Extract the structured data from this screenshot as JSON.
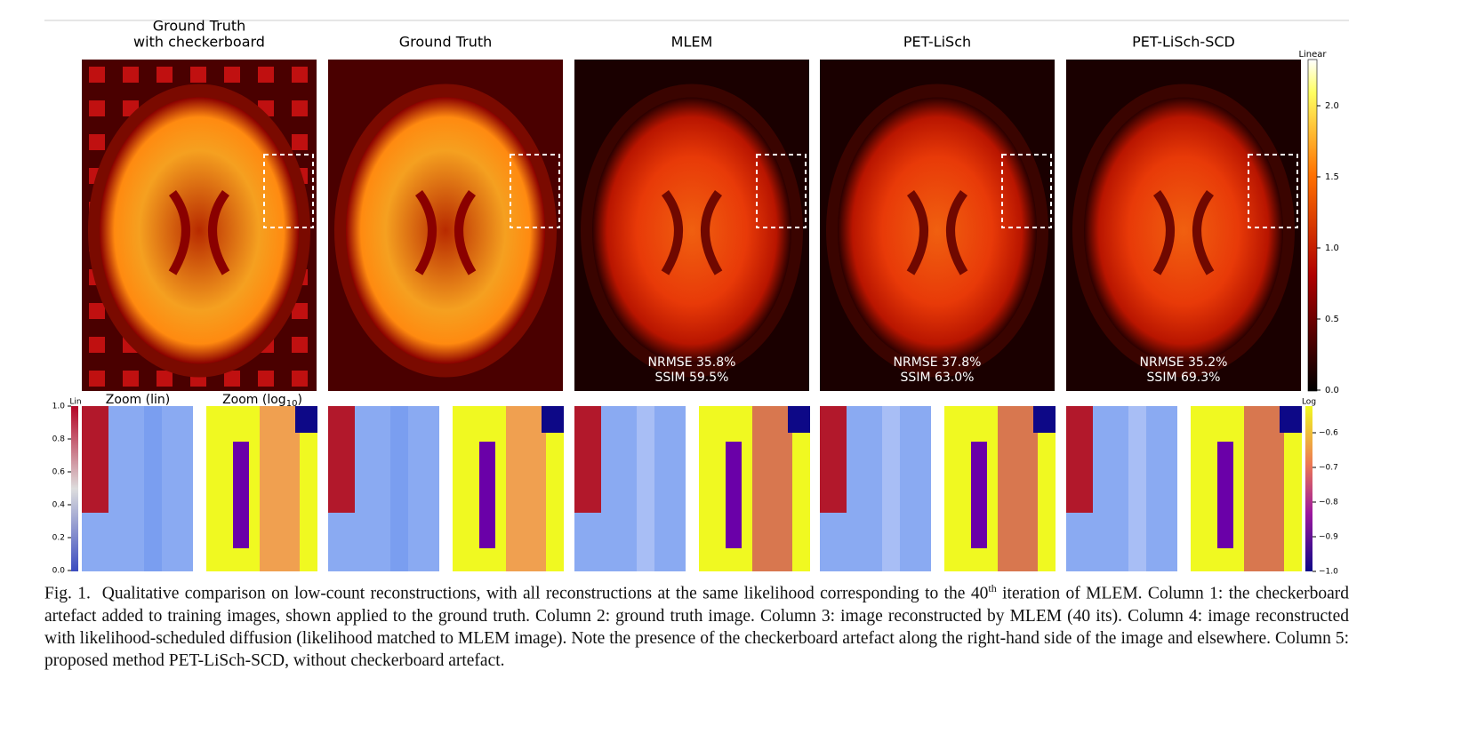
{
  "panels": [
    {
      "title_lines": [
        "Ground Truth",
        "with checkerboard"
      ]
    },
    {
      "title_lines": [
        "Ground Truth"
      ]
    },
    {
      "title_lines": [
        "MLEM"
      ],
      "metrics": [
        "NRMSE 35.8%",
        "SSIM  59.5%"
      ]
    },
    {
      "title_lines": [
        "PET-LiSch"
      ],
      "metrics": [
        "NRMSE 37.8%",
        "SSIM  63.0%"
      ]
    },
    {
      "title_lines": [
        "PET-LiSch-SCD"
      ],
      "metrics": [
        "NRMSE 35.2%",
        "SSIM  69.3%"
      ]
    }
  ],
  "colorbar_main": {
    "label": "Linear",
    "ticks": [
      "0.0",
      "0.5",
      "1.0",
      "1.5",
      "2.0"
    ]
  },
  "colorbar_lin": {
    "label": "Lin",
    "ticks": [
      "0.0",
      "0.2",
      "0.4",
      "0.6",
      "0.8",
      "1.0"
    ]
  },
  "colorbar_log": {
    "label": "Log",
    "ticks": [
      "−1.0",
      "−0.9",
      "−0.8",
      "−0.7",
      "−0.6"
    ]
  },
  "zoom_labels": {
    "lin": "Zoom (lin)",
    "log": {
      "text": "Zoom (log",
      "subscript": "10",
      "close": ")"
    }
  },
  "caption": {
    "label": "Fig. 1.",
    "text_before": "Qualitative comparison on low-count reconstructions, with all reconstructions at the same likelihood corresponding to the 40",
    "superscript": "th",
    "text_after": " iteration of MLEM. Column 1: the checkerboard artefact added to training images, shown applied to the ground truth. Column 2: ground truth image. Column 3: image reconstructed by MLEM (40 its). Column 4: image reconstructed with likelihood-scheduled diffusion (likelihood matched to MLEM image). Note the presence of the checkerboard artefact along the right-hand side of the image and elsewhere. Column 5: proposed method PET-LiSch-SCD, without checkerboard artefact."
  }
}
